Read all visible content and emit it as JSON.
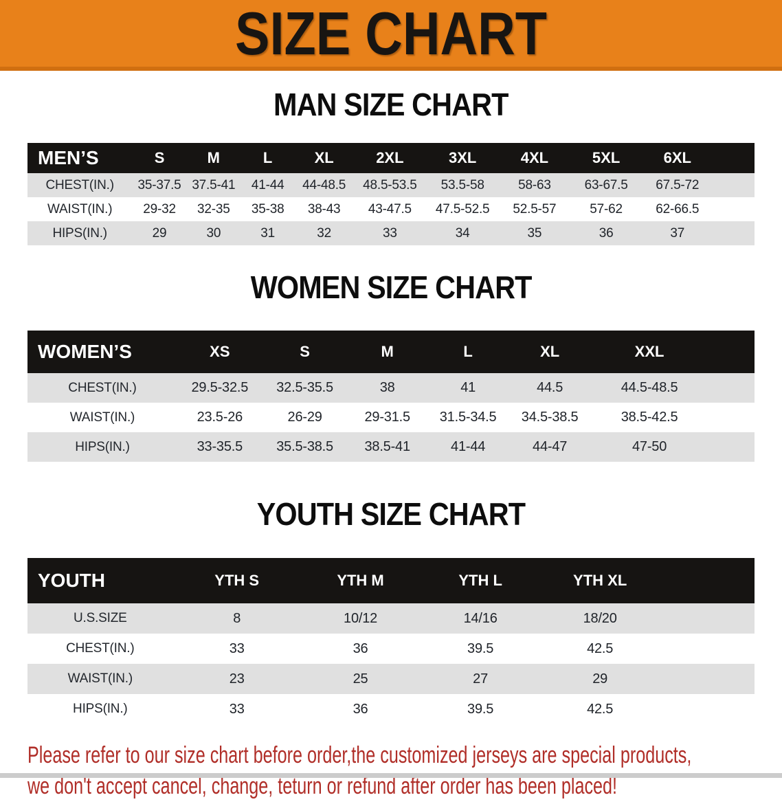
{
  "banner": {
    "title": "SIZE CHART"
  },
  "colors": {
    "banner_orange": "#E8811A",
    "banner_edge": "#D06F10",
    "header_black": "#161412",
    "row_gray": "#E0E0E0",
    "disclaimer_red": "#B02E28"
  },
  "sections": [
    {
      "title": "MAN SIZE CHART",
      "header_label": "MEN’S",
      "sizes": [
        "S",
        "M",
        "L",
        "XL",
        "2XL",
        "3XL",
        "4XL",
        "5XL",
        "6XL"
      ],
      "rows": [
        {
          "label": "CHEST(IN.)",
          "values": [
            "35-37.5",
            "37.5-41",
            "41-44",
            "44-48.5",
            "48.5-53.5",
            "53.5-58",
            "58-63",
            "63-67.5",
            "67.5-72"
          ]
        },
        {
          "label": "WAIST(IN.)",
          "values": [
            "29-32",
            "32-35",
            "35-38",
            "38-43",
            "43-47.5",
            "47.5-52.5",
            "52.5-57",
            "57-62",
            "62-66.5"
          ]
        },
        {
          "label": "HIPS(IN.)",
          "values": [
            "29",
            "30",
            "31",
            "32",
            "33",
            "34",
            "35",
            "36",
            "37"
          ]
        }
      ]
    },
    {
      "title": "WOMEN SIZE CHART",
      "header_label": "WOMEN’S",
      "sizes": [
        "XS",
        "S",
        "M",
        "L",
        "XL",
        "XXL"
      ],
      "rows": [
        {
          "label": "CHEST(IN.)",
          "values": [
            "29.5-32.5",
            "32.5-35.5",
            "38",
            "41",
            "44.5",
            "44.5-48.5"
          ]
        },
        {
          "label": "WAIST(IN.)",
          "values": [
            "23.5-26",
            "26-29",
            "29-31.5",
            "31.5-34.5",
            "34.5-38.5",
            "38.5-42.5"
          ]
        },
        {
          "label": "HIPS(IN.)",
          "values": [
            "33-35.5",
            "35.5-38.5",
            "38.5-41",
            "41-44",
            "44-47",
            "47-50"
          ]
        }
      ]
    },
    {
      "title": "YOUTH SIZE CHART",
      "header_label": "YOUTH",
      "sizes": [
        "YTH S",
        "YTH M",
        "YTH L",
        "YTH XL"
      ],
      "rows": [
        {
          "label": "U.S.SIZE",
          "values": [
            "8",
            "10/12",
            "14/16",
            "18/20"
          ]
        },
        {
          "label": "CHEST(IN.)",
          "values": [
            "33",
            "36",
            "39.5",
            "42.5"
          ]
        },
        {
          "label": "WAIST(IN.)",
          "values": [
            "23",
            "25",
            "27",
            "29"
          ]
        },
        {
          "label": "HIPS(IN.)",
          "values": [
            "33",
            "36",
            "39.5",
            "42.5"
          ]
        }
      ]
    }
  ],
  "disclaimer": {
    "line1": "Please refer to our size chart before order,the customized jerseys are special products,",
    "line2": "we don't accept cancel, change, teturn or refund after order has been placed!"
  }
}
